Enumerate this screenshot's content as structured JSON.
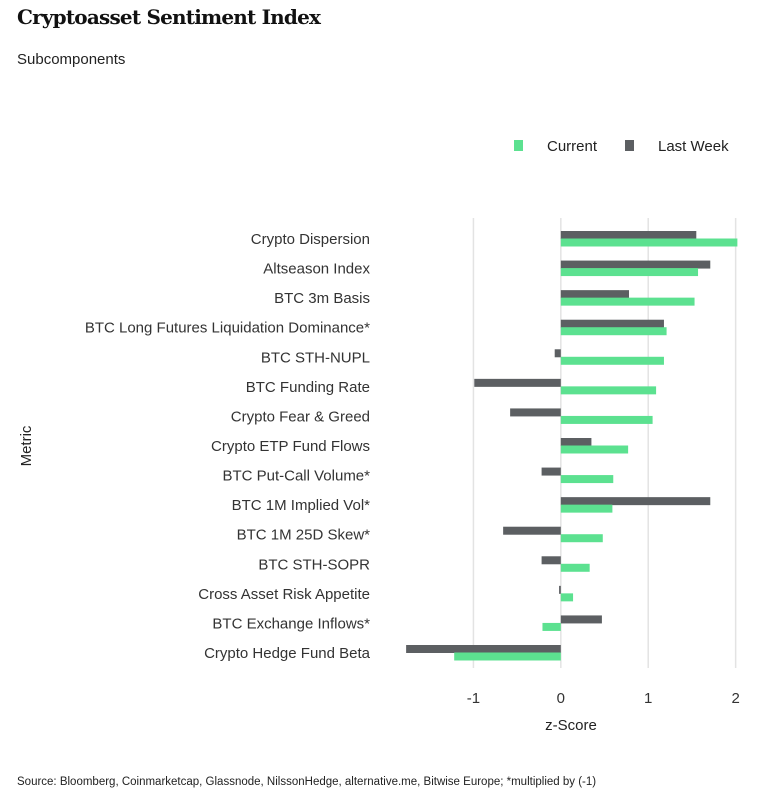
{
  "title": "Cryptoasset Sentiment Index",
  "subtitle": "Subcomponents",
  "source": "Source: Bloomberg, Coinmarketcap, Glassnode, NilssonHedge, alternative.me, Bitwise Europe; *multiplied by (-1)",
  "chart_data": {
    "type": "bar",
    "orientation": "horizontal",
    "xlabel": "z-Score",
    "ylabel": "Metric",
    "xlim": [
      -1.8,
      2.05
    ],
    "xticks": [
      -1,
      0,
      1,
      2
    ],
    "xtick_labels": [
      "-1",
      "0",
      "1",
      "2"
    ],
    "grid": true,
    "legend_position": "top-right",
    "categories": [
      "Crypto Dispersion",
      "Altseason Index",
      "BTC 3m Basis",
      "BTC Long Futures Liquidation Dominance*",
      "BTC STH-NUPL",
      "BTC Funding Rate",
      "Crypto Fear & Greed",
      "Crypto ETP Fund Flows",
      "BTC Put-Call Volume*",
      "BTC 1M Implied Vol*",
      "BTC 1M 25D Skew*",
      "BTC STH-SOPR",
      "Cross Asset Risk Appetite",
      "BTC Exchange Inflows*",
      "Crypto Hedge Fund Beta"
    ],
    "series": [
      {
        "name": "Current",
        "color": "#5ce190",
        "values": [
          2.02,
          1.57,
          1.53,
          1.21,
          1.18,
          1.09,
          1.05,
          0.77,
          0.6,
          0.59,
          0.48,
          0.33,
          0.14,
          -0.21,
          -1.22
        ]
      },
      {
        "name": "Last Week",
        "color": "#5c5f62",
        "values": [
          1.55,
          1.71,
          0.78,
          1.18,
          -0.07,
          -0.99,
          -0.58,
          0.35,
          -0.22,
          1.71,
          -0.66,
          -0.22,
          -0.02,
          0.47,
          -1.77
        ]
      }
    ]
  }
}
